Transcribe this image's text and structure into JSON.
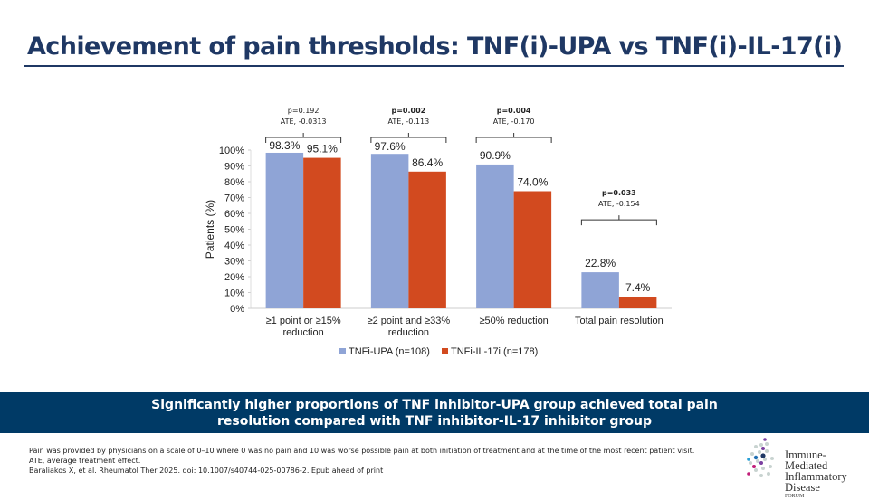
{
  "title": "Achievement of pain thresholds: TNF(i)-UPA vs TNF(i)-IL-17(i)",
  "banner": {
    "line1": "Significantly higher proportions of TNF inhibitor-UPA group achieved total pain",
    "line2": "resolution compared with TNF inhibitor-IL-17 inhibitor group"
  },
  "footnotes": [
    "Pain was provided by physicians on a scale of 0–10 where 0 was no pain and 10 was worse possible pain at both initiation of treatment and at the time of the most recent patient visit.",
    "ATE, average treatment effect.",
    "Baraliakos X, et al. Rheumatol Ther 2025. doi: 10.1007/s40744-025-00786-2. Epub ahead of print"
  ],
  "logo": {
    "line1": "Immune-Mediated",
    "line2": "Inflammatory Disease",
    "line3": "FORUM"
  },
  "chart_data": {
    "type": "bar",
    "ylabel": "Patients (%)",
    "ylim": [
      0,
      100
    ],
    "yticks": [
      "0%",
      "10%",
      "20%",
      "30%",
      "40%",
      "50%",
      "60%",
      "70%",
      "80%",
      "90%",
      "100%"
    ],
    "categories": [
      [
        "≥1 point or ≥15%",
        "reduction"
      ],
      [
        "≥2 point and ≥33%",
        "reduction"
      ],
      [
        "≥50% reduction"
      ],
      [
        "Total pain resolution"
      ]
    ],
    "series": [
      {
        "name": "TNFi-UPA (n=108)",
        "color": "#8fa4d6",
        "values": [
          98.3,
          97.6,
          90.9,
          22.8
        ],
        "labels": [
          "98.3%",
          "97.6%",
          "90.9%",
          "22.8%"
        ]
      },
      {
        "name": "TNFi-IL-17i (n=178)",
        "color": "#d24a1f",
        "values": [
          95.1,
          86.4,
          74.0,
          7.4
        ],
        "labels": [
          "95.1%",
          "86.4%",
          "74.0%",
          "7.4%"
        ]
      }
    ],
    "annotations": [
      {
        "p": "p=0.192",
        "ate": "ATE, -0.0313",
        "bold": false
      },
      {
        "p": "p=0.002",
        "ate": "ATE, -0.113",
        "bold": true
      },
      {
        "p": "p=0.004",
        "ate": "ATE, -0.170",
        "bold": true
      },
      {
        "p": "p=0.033",
        "ate": "ATE, -0.154",
        "bold": true
      }
    ],
    "legend": "bottom"
  }
}
